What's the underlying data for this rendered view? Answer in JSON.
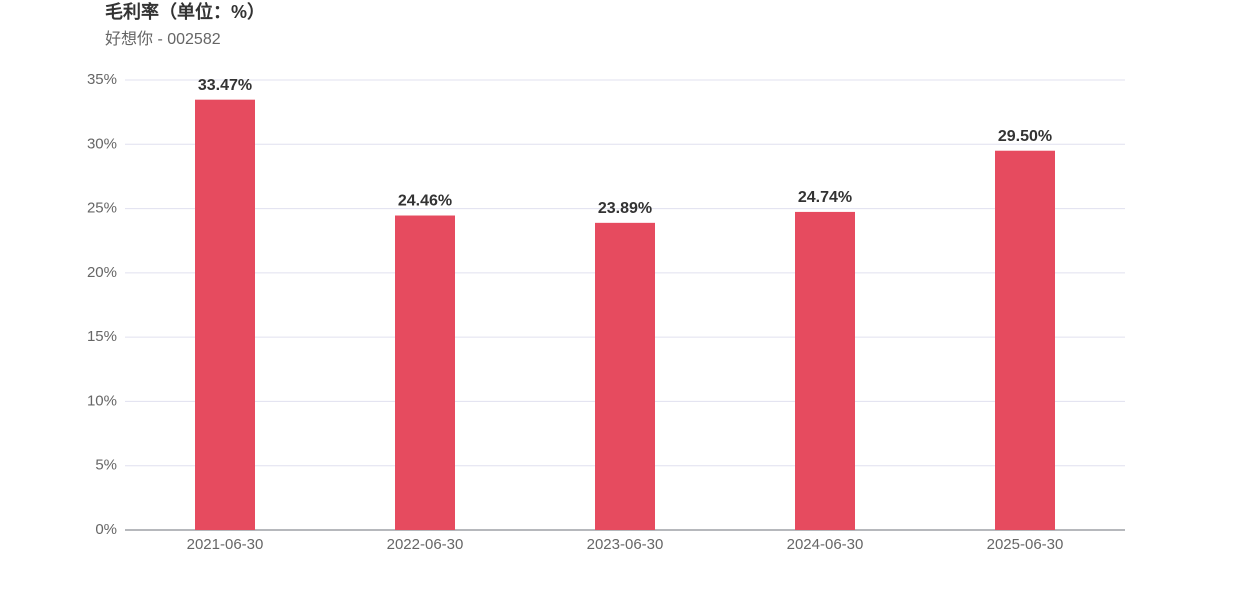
{
  "chart_data": {
    "type": "bar",
    "title": "毛利率（单位：%）",
    "subtitle": "好想你 - 002582",
    "categories": [
      "2021-06-30",
      "2022-06-30",
      "2023-06-30",
      "2024-06-30",
      "2025-06-30"
    ],
    "values": [
      33.47,
      24.46,
      23.89,
      24.74,
      29.5
    ],
    "value_labels": [
      "33.47%",
      "24.46%",
      "23.89%",
      "24.74%",
      "29.50%"
    ],
    "color": "#e64b5f",
    "ylim": [
      0,
      35
    ],
    "yticks": [
      {
        "value": 0,
        "label": "0%"
      },
      {
        "value": 5,
        "label": "5%"
      },
      {
        "value": 10,
        "label": "10%"
      },
      {
        "value": 15,
        "label": "15%"
      },
      {
        "value": 20,
        "label": "20%"
      },
      {
        "value": 25,
        "label": "25%"
      },
      {
        "value": 30,
        "label": "30%"
      },
      {
        "value": 35,
        "label": "35%"
      }
    ],
    "grid": true
  }
}
